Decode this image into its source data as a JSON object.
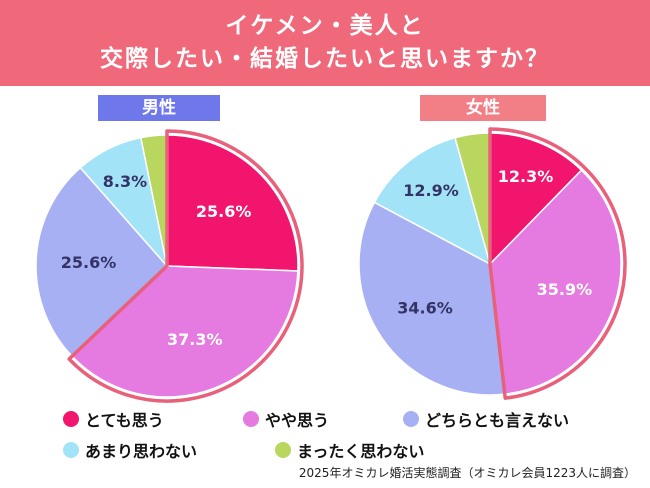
{
  "header": {
    "title_line1": "イケメン・美人と",
    "title_line2": "交際したい・結婚したいと思いますか？"
  },
  "colors": {
    "header_bg": "#f0697a",
    "male_label_bg": "#6f78ea",
    "female_label_bg": "#f27f86",
    "highlight_outline": "#e8607a"
  },
  "legend": [
    {
      "label": "とても思う",
      "color": "#f2156e"
    },
    {
      "label": "やや思う",
      "color": "#e57ae0"
    },
    {
      "label": "どちらとも言えない",
      "color": "#a8b0f4"
    },
    {
      "label": "あまり思わない",
      "color": "#a3e3f8"
    },
    {
      "label": "まったく思わない",
      "color": "#b9d65e"
    }
  ],
  "chart_data": [
    {
      "type": "pie",
      "title": "男性",
      "categories": [
        "とても思う",
        "やや思う",
        "どちらとも言えない",
        "あまり思わない",
        "まったく思わない"
      ],
      "values": [
        25.6,
        37.3,
        25.6,
        8.3,
        3.2
      ],
      "data_labels": [
        "25.6%",
        "37.3%",
        "25.6%",
        "8.3%",
        ""
      ],
      "start": "12 o'clock, clockwise",
      "highlighted_slices": [
        "とても思う",
        "やや思う"
      ]
    },
    {
      "type": "pie",
      "title": "女性",
      "categories": [
        "とても思う",
        "やや思う",
        "どちらとも言えない",
        "あまり思わない",
        "まったく思わない"
      ],
      "values": [
        12.3,
        35.9,
        34.6,
        12.9,
        4.3
      ],
      "data_labels": [
        "12.3%",
        "35.9%",
        "34.6%",
        "12.9%",
        ""
      ],
      "start": "12 o'clock, clockwise",
      "highlighted_slices": [
        "とても思う",
        "やや思う"
      ]
    }
  ],
  "source_note": "2025年オミカレ婚活実態調査（オミカレ会員1223人に調査）"
}
